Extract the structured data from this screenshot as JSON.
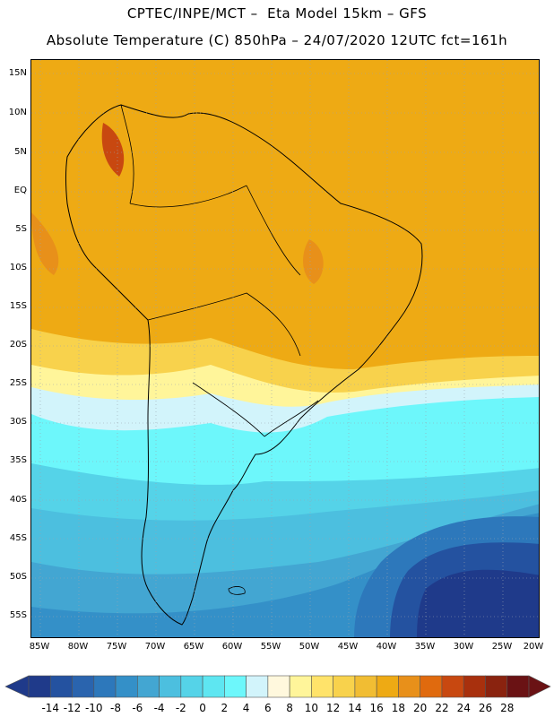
{
  "title": {
    "line1": "CPTEC/INPE/MCT –  Eta Model 15km – GFS",
    "line2": "Absolute Temperature (C) 850hPa – 24/07/2020 12UTC fct=161h"
  },
  "map": {
    "lat_labels": [
      "15N",
      "10N",
      "5N",
      "EQ",
      "5S",
      "10S",
      "15S",
      "20S",
      "25S",
      "30S",
      "35S",
      "40S",
      "45S",
      "50S",
      "55S"
    ],
    "lon_labels": [
      "85W",
      "80W",
      "75W",
      "70W",
      "65W",
      "60W",
      "55W",
      "50W",
      "45W",
      "40W",
      "35W",
      "30W",
      "25W",
      "20W"
    ]
  },
  "colorbar": {
    "labels": [
      "-14",
      "-12",
      "-10",
      "-8",
      "-6",
      "-4",
      "-2",
      "0",
      "2",
      "4",
      "6",
      "8",
      "10",
      "12",
      "14",
      "16",
      "18",
      "20",
      "22",
      "24",
      "26",
      "28"
    ],
    "colors": [
      "#1f3a8a",
      "#2452a0",
      "#2a64ae",
      "#2d78bb",
      "#3490c8",
      "#43a6d2",
      "#4cbfdf",
      "#55d3e8",
      "#5ee6f1",
      "#6df7fb",
      "#d2f4fb",
      "#fff8dd",
      "#fff59a",
      "#ffe36a",
      "#f8d24c",
      "#f1bd33",
      "#eeaa14",
      "#e8901a",
      "#e06a0e",
      "#c84810",
      "#a8300d",
      "#8a230f",
      "#6a1214"
    ]
  }
}
